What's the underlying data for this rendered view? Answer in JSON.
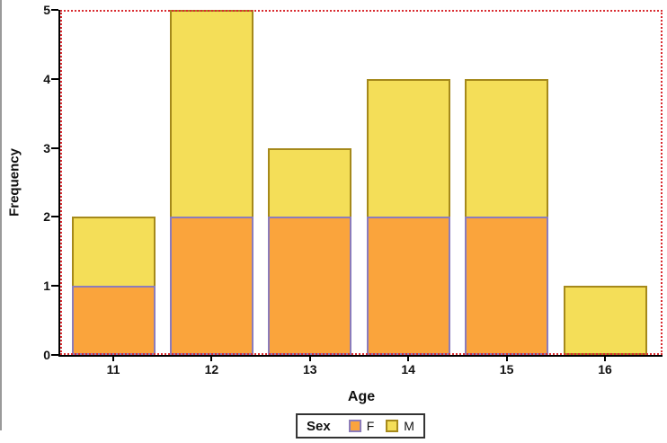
{
  "chart_data": {
    "type": "bar",
    "variant": "stacked-vertical",
    "title": "",
    "xlabel": "Age",
    "ylabel": "Frequency",
    "categories": [
      "11",
      "12",
      "13",
      "14",
      "15",
      "16"
    ],
    "series": [
      {
        "name": "F",
        "values": [
          1,
          2,
          2,
          2,
          2,
          0
        ],
        "fill": "#FAA43C",
        "outline": "#8B7CBB"
      },
      {
        "name": "M",
        "values": [
          1,
          3,
          1,
          2,
          2,
          1
        ],
        "fill": "#F4DE58",
        "outline": "#A5891B"
      }
    ],
    "totals": [
      2,
      5,
      3,
      4,
      4,
      1
    ],
    "ylim": [
      0,
      5
    ],
    "yticks": [
      0,
      1,
      2,
      3,
      4,
      5
    ],
    "grid": false,
    "legend_position": "bottom",
    "plot_frame": {
      "style": "dotted",
      "color": "#D92B30"
    },
    "axis_color": "#000000"
  },
  "axes": {
    "y_tick_labels": [
      "0",
      "1",
      "2",
      "3",
      "4",
      "5"
    ],
    "x_tick_labels": [
      "11",
      "12",
      "13",
      "14",
      "15",
      "16"
    ]
  },
  "legend": {
    "title": "Sex",
    "items": [
      {
        "label": "F",
        "fill": "#FAA43C",
        "outline": "#8B7CBB"
      },
      {
        "label": "M",
        "fill": "#F4DE58",
        "outline": "#A5891B"
      }
    ]
  }
}
